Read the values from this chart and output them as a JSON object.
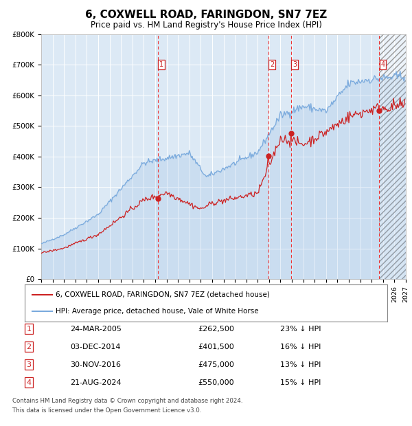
{
  "title": "6, COXWELL ROAD, FARINGDON, SN7 7EZ",
  "subtitle": "Price paid vs. HM Land Registry's House Price Index (HPI)",
  "title_fontsize": 11,
  "subtitle_fontsize": 8.5,
  "plot_bg_color": "#dce9f5",
  "transactions": [
    {
      "num": 1,
      "date_label": "24-MAR-2005",
      "date_x": 2005.23,
      "price": 262500,
      "pct": "23% ↓ HPI"
    },
    {
      "num": 2,
      "date_label": "03-DEC-2014",
      "date_x": 2014.92,
      "price": 401500,
      "pct": "16% ↓ HPI"
    },
    {
      "num": 3,
      "date_label": "30-NOV-2016",
      "date_x": 2016.92,
      "price": 475000,
      "pct": "13% ↓ HPI"
    },
    {
      "num": 4,
      "date_label": "21-AUG-2024",
      "date_x": 2024.64,
      "price": 550000,
      "pct": "15% ↓ HPI"
    }
  ],
  "hpi_line_color": "#7aaadd",
  "price_line_color": "#cc2222",
  "marker_color": "#cc2222",
  "dashed_line_color": "#ee3333",
  "ylabel_ticks": [
    "£0",
    "£100K",
    "£200K",
    "£300K",
    "£400K",
    "£500K",
    "£600K",
    "£700K",
    "£800K"
  ],
  "ytick_values": [
    0,
    100000,
    200000,
    300000,
    400000,
    500000,
    600000,
    700000,
    800000
  ],
  "xmin": 1995.0,
  "xmax": 2027.0,
  "ymin": 0,
  "ymax": 800000,
  "legend_line1": "6, COXWELL ROAD, FARINGDON, SN7 7EZ (detached house)",
  "legend_line2": "HPI: Average price, detached house, Vale of White Horse",
  "footer1": "Contains HM Land Registry data © Crown copyright and database right 2024.",
  "footer2": "This data is licensed under the Open Government Licence v3.0.",
  "future_start": 2024.64
}
